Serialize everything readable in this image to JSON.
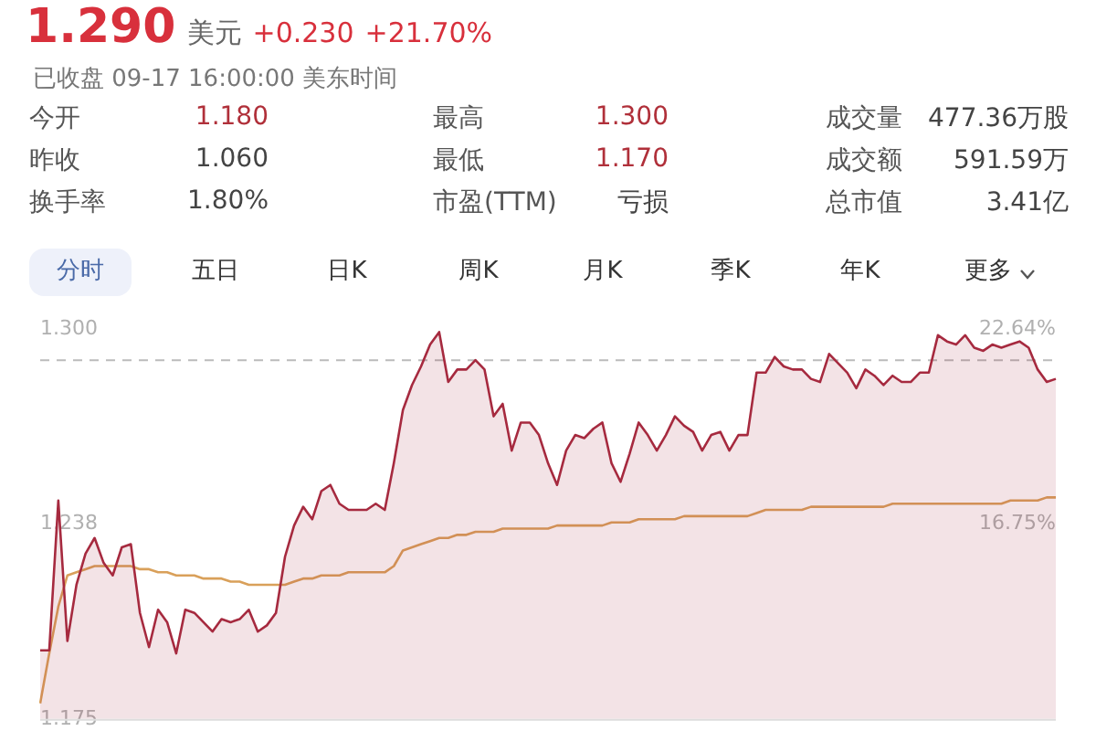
{
  "chart_data": [
    {
      "type": "other",
      "title": "1.290",
      "annotations": [
        "美元",
        "+0.230",
        "+21.70%",
        "已收盘 09-17 16:00:00 美东时间",
        "今开",
        "1.180",
        "最高",
        "1.300",
        "成交量",
        "477.36万股",
        "昨收",
        "1.060",
        "最低",
        "1.170",
        "成交额",
        "591.59万",
        "换手率",
        "1.80%",
        "市盈(TTM)",
        "亏损",
        "总市值",
        "3.41亿",
        "分时",
        "五日",
        "日K",
        "周K",
        "月K",
        "季K",
        "年K",
        "更多"
      ]
    },
    {
      "type": "area",
      "categories": [
        null,
        null,
        null,
        null,
        null,
        null,
        null,
        null,
        null,
        null,
        null,
        null,
        null,
        null,
        null,
        null,
        null,
        null,
        null,
        null,
        null,
        null,
        null,
        null,
        null,
        null,
        null,
        null,
        null,
        null,
        null,
        null,
        null,
        null,
        null,
        null,
        null,
        null,
        null,
        null,
        null,
        null,
        null,
        null,
        null,
        null,
        null,
        null,
        null,
        null,
        null,
        null,
        null,
        null,
        null,
        null,
        null,
        null,
        null,
        null,
        null,
        null,
        null,
        null,
        null,
        null,
        null,
        null,
        null,
        null,
        null,
        null,
        null,
        null,
        null,
        null,
        null,
        null,
        null,
        null,
        null,
        null,
        null,
        null,
        null,
        null,
        null,
        null,
        null,
        null,
        null,
        null,
        null,
        null,
        null,
        null,
        null,
        null,
        null,
        null,
        null,
        null,
        null,
        null,
        null,
        null,
        null,
        null,
        null,
        null,
        null,
        null,
        null
      ],
      "series": [
        {
          "type": "area",
          "color": "#a62a3f",
          "values": [
            1.197,
            1.197,
            1.245,
            1.2,
            1.218,
            1.228,
            1.233,
            1.225,
            1.221,
            1.23,
            1.231,
            1.209,
            1.198,
            1.21,
            1.206,
            1.196,
            1.21,
            1.209,
            1.206,
            1.203,
            1.207,
            1.206,
            1.207,
            1.21,
            1.203,
            1.205,
            1.209,
            1.227,
            1.237,
            1.243,
            1.239,
            1.248,
            1.25,
            1.244,
            1.242,
            1.242,
            1.242,
            1.244,
            1.242,
            1.257,
            1.274,
            1.282,
            1.288,
            1.295,
            1.299,
            1.283,
            1.287,
            1.287,
            1.29,
            1.287,
            1.272,
            1.276,
            1.261,
            1.27,
            1.27,
            1.266,
            1.257,
            1.25,
            1.261,
            1.266,
            1.265,
            1.268,
            1.27,
            1.257,
            1.251,
            1.26,
            1.27,
            1.266,
            1.261,
            1.266,
            1.272,
            1.269,
            1.267,
            1.261,
            1.266,
            1.267,
            1.261,
            1.266,
            1.266,
            1.286,
            1.286,
            1.291,
            1.288,
            1.287,
            1.287,
            1.284,
            1.283,
            1.292,
            1.289,
            1.286,
            1.281,
            1.287,
            1.285,
            1.282,
            1.285,
            1.283,
            1.283,
            1.286,
            1.286,
            1.298,
            1.296,
            1.295,
            1.298,
            1.294,
            1.293,
            1.295,
            1.294,
            1.295,
            1.296,
            1.294,
            1.287,
            1.283,
            1.284
          ]
        },
        {
          "type": "line",
          "color": "#d9a05a",
          "values": [
            1.18,
            1.196,
            1.211,
            1.221,
            1.222,
            1.223,
            1.224,
            1.224,
            1.224,
            1.224,
            1.224,
            1.223,
            1.223,
            1.222,
            1.222,
            1.221,
            1.221,
            1.221,
            1.22,
            1.22,
            1.22,
            1.219,
            1.219,
            1.218,
            1.218,
            1.218,
            1.218,
            1.218,
            1.219,
            1.22,
            1.22,
            1.221,
            1.221,
            1.221,
            1.222,
            1.222,
            1.222,
            1.222,
            1.222,
            1.224,
            1.229,
            1.23,
            1.231,
            1.232,
            1.233,
            1.233,
            1.234,
            1.234,
            1.235,
            1.235,
            1.235,
            1.236,
            1.236,
            1.236,
            1.236,
            1.236,
            1.236,
            1.237,
            1.237,
            1.237,
            1.237,
            1.237,
            1.237,
            1.238,
            1.238,
            1.238,
            1.239,
            1.239,
            1.239,
            1.239,
            1.239,
            1.24,
            1.24,
            1.24,
            1.24,
            1.24,
            1.24,
            1.24,
            1.24,
            1.241,
            1.242,
            1.242,
            1.242,
            1.242,
            1.242,
            1.243,
            1.243,
            1.243,
            1.243,
            1.243,
            1.243,
            1.243,
            1.243,
            1.243,
            1.244,
            1.244,
            1.244,
            1.244,
            1.244,
            1.244,
            1.244,
            1.244,
            1.244,
            1.244,
            1.244,
            1.244,
            1.244,
            1.245,
            1.245,
            1.245,
            1.245,
            1.246,
            1.246
          ]
        }
      ],
      "ylim": [
        1.175,
        1.3
      ],
      "yticks": [
        {
          "value": 1.175,
          "label": "1.175"
        },
        {
          "value": 1.2375,
          "label": "1.238"
        },
        {
          "value": 1.3,
          "label": "1.300"
        }
      ],
      "y2lim": [
        10.85,
        22.64
      ],
      "y2ticks": [
        {
          "value": 16.75,
          "label": "16.75%"
        },
        {
          "value": 22.64,
          "label": "22.64%"
        }
      ],
      "ref_lines": [
        {
          "axis": "y",
          "value": 1.29,
          "color": "#bbbbbb",
          "line_style": "dashed"
        }
      ],
      "grid": false,
      "legend": false,
      "tick_labels": "y",
      "marker": "none"
    }
  ]
}
